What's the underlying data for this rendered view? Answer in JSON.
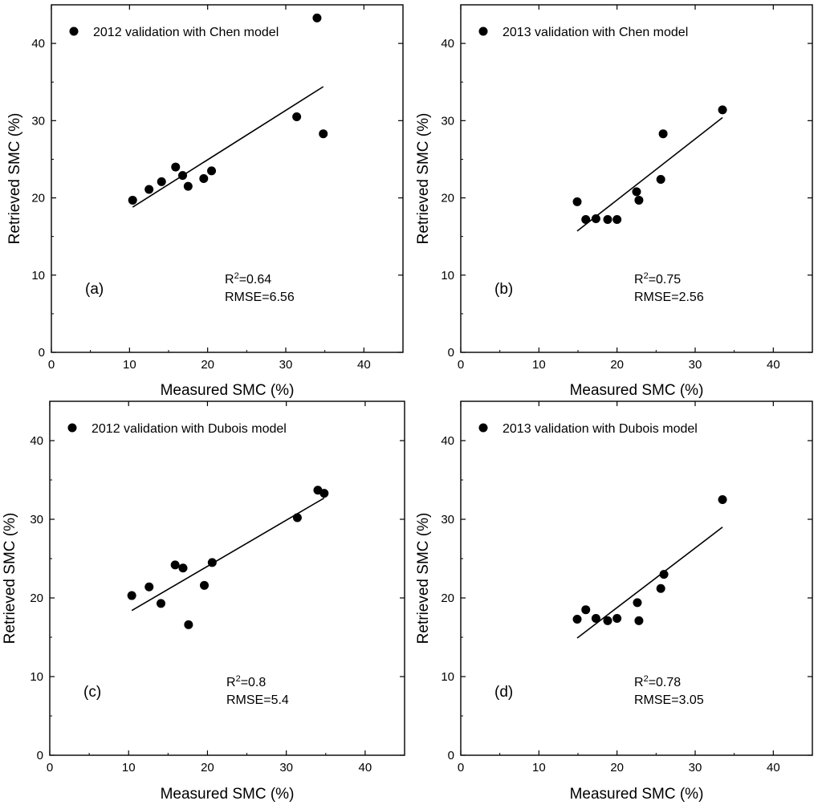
{
  "chart_data": [
    {
      "type": "scatter",
      "panel_label": "(a)",
      "legend": "2012 validation with Chen model",
      "xlabel": "Measured SMC (%)",
      "ylabel": "Retrieved SMC (%)",
      "xlim": [
        0,
        45
      ],
      "ylim": [
        0,
        45
      ],
      "xticks": [
        "0",
        "10",
        "20",
        "30",
        "40"
      ],
      "yticks": [
        "0",
        "10",
        "20",
        "30",
        "40"
      ],
      "r2_prefix": "R",
      "r2_sup": "2",
      "r2_value": "=0.64",
      "rmse": "RMSE=6.56",
      "points": [
        {
          "x": 10.4,
          "y": 19.7
        },
        {
          "x": 12.5,
          "y": 21.1
        },
        {
          "x": 14.1,
          "y": 22.1
        },
        {
          "x": 15.9,
          "y": 24.0
        },
        {
          "x": 16.8,
          "y": 22.9
        },
        {
          "x": 17.5,
          "y": 21.5
        },
        {
          "x": 19.5,
          "y": 22.5
        },
        {
          "x": 20.5,
          "y": 23.5
        },
        {
          "x": 31.4,
          "y": 30.5
        },
        {
          "x": 34.0,
          "y": 43.3
        },
        {
          "x": 34.8,
          "y": 28.3
        }
      ],
      "fit": {
        "x": [
          10.4,
          34.8
        ],
        "y": [
          18.8,
          34.4
        ]
      }
    },
    {
      "type": "scatter",
      "panel_label": "(b)",
      "legend": "2013 validation with Chen model",
      "xlabel": "Measured SMC (%)",
      "ylabel": "Retrieved SMC (%)",
      "xlim": [
        0,
        45
      ],
      "ylim": [
        0,
        45
      ],
      "xticks": [
        "0",
        "10",
        "20",
        "30",
        "40"
      ],
      "yticks": [
        "0",
        "10",
        "20",
        "30",
        "40"
      ],
      "r2_prefix": "R",
      "r2_sup": "2",
      "r2_value": "=0.75",
      "rmse": "RMSE=2.56",
      "points": [
        {
          "x": 14.9,
          "y": 19.5
        },
        {
          "x": 16.0,
          "y": 17.2
        },
        {
          "x": 17.3,
          "y": 17.3
        },
        {
          "x": 18.8,
          "y": 17.2
        },
        {
          "x": 20.0,
          "y": 17.2
        },
        {
          "x": 22.5,
          "y": 20.8
        },
        {
          "x": 22.8,
          "y": 19.7
        },
        {
          "x": 25.6,
          "y": 22.4
        },
        {
          "x": 25.9,
          "y": 28.3
        },
        {
          "x": 33.5,
          "y": 31.4
        }
      ],
      "fit": {
        "x": [
          14.9,
          33.5
        ],
        "y": [
          15.7,
          30.4
        ]
      }
    },
    {
      "type": "scatter",
      "panel_label": "(c)",
      "legend": "2012 validation with Dubois model",
      "xlabel": "Measured SMC (%)",
      "ylabel": "Retrieved SMC (%)",
      "xlim": [
        0,
        45
      ],
      "ylim": [
        0,
        45
      ],
      "xticks": [
        "0",
        "10",
        "20",
        "30",
        "40"
      ],
      "yticks": [
        "0",
        "10",
        "20",
        "30",
        "40"
      ],
      "r2_prefix": "R",
      "r2_sup": "2",
      "r2_value": "=0.8",
      "rmse": "RMSE=5.4",
      "points": [
        {
          "x": 10.4,
          "y": 20.3
        },
        {
          "x": 12.6,
          "y": 21.4
        },
        {
          "x": 14.1,
          "y": 19.3
        },
        {
          "x": 15.9,
          "y": 24.2
        },
        {
          "x": 16.9,
          "y": 23.8
        },
        {
          "x": 17.6,
          "y": 16.6
        },
        {
          "x": 19.6,
          "y": 21.6
        },
        {
          "x": 20.6,
          "y": 24.5
        },
        {
          "x": 31.4,
          "y": 30.2
        },
        {
          "x": 34.0,
          "y": 33.7
        },
        {
          "x": 34.8,
          "y": 33.3
        }
      ],
      "fit": {
        "x": [
          10.4,
          34.8
        ],
        "y": [
          18.4,
          32.7
        ]
      }
    },
    {
      "type": "scatter",
      "panel_label": "(d)",
      "legend": "2013 validation with Dubois model",
      "xlabel": "Measured SMC (%)",
      "ylabel": "Retrieved SMC (%)",
      "xlim": [
        0,
        45
      ],
      "ylim": [
        0,
        45
      ],
      "xticks": [
        "0",
        "10",
        "20",
        "30",
        "40"
      ],
      "yticks": [
        "0",
        "10",
        "20",
        "30",
        "40"
      ],
      "r2_prefix": "R",
      "r2_sup": "2",
      "r2_value": "=0.78",
      "rmse": "RMSE=3.05",
      "points": [
        {
          "x": 14.9,
          "y": 17.3
        },
        {
          "x": 16.0,
          "y": 18.5
        },
        {
          "x": 17.3,
          "y": 17.4
        },
        {
          "x": 18.8,
          "y": 17.1
        },
        {
          "x": 20.0,
          "y": 17.4
        },
        {
          "x": 22.6,
          "y": 19.4
        },
        {
          "x": 22.8,
          "y": 17.1
        },
        {
          "x": 25.6,
          "y": 21.2
        },
        {
          "x": 26.0,
          "y": 23.0
        },
        {
          "x": 33.5,
          "y": 32.5
        }
      ],
      "fit": {
        "x": [
          14.9,
          33.5
        ],
        "y": [
          14.9,
          29.0
        ]
      }
    }
  ]
}
